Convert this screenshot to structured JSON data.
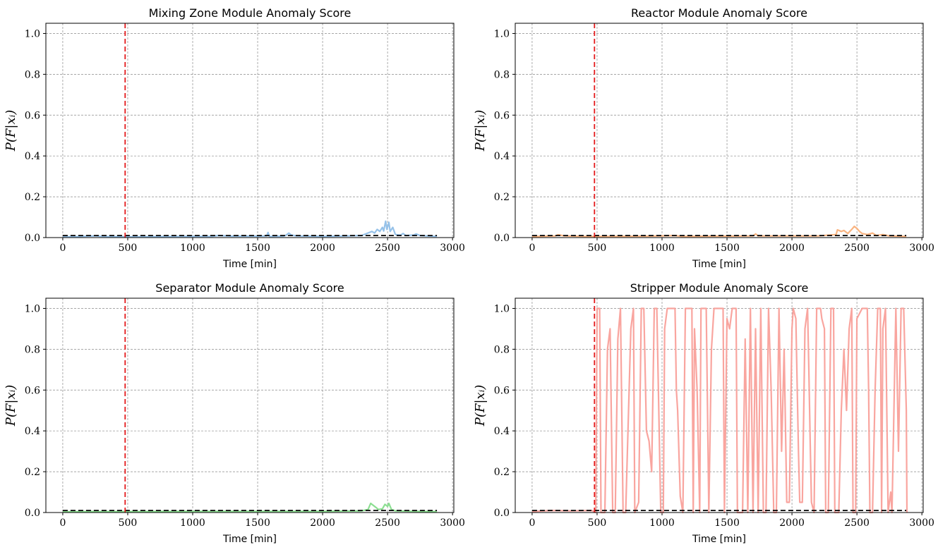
{
  "chart_data": [
    {
      "type": "line",
      "title": "Mixing Zone Module Anomaly Score",
      "xlabel": "Time [min]",
      "ylabel": "P(F|xᵢ)",
      "xlim": [
        -130,
        3010
      ],
      "ylim": [
        0,
        1.05
      ],
      "xticks": [
        "0",
        "500",
        "1000",
        "1500",
        "2000",
        "2500",
        "3000"
      ],
      "yticks": [
        "0.0",
        "0.2",
        "0.4",
        "0.6",
        "0.8",
        "1.0"
      ],
      "grid": true,
      "fault_time": 480,
      "threshold": 0.01,
      "series": [
        {
          "color": "#90bfe8",
          "points": [
            [
              0,
              0.004
            ],
            [
              100,
              0.005
            ],
            [
              250,
              0.008
            ],
            [
              300,
              0.006
            ],
            [
              500,
              0.004
            ],
            [
              700,
              0.005
            ],
            [
              900,
              0.006
            ],
            [
              1150,
              0.006
            ],
            [
              1200,
              0.01
            ],
            [
              1300,
              0.007
            ],
            [
              1500,
              0.007
            ],
            [
              1570,
              0.008
            ],
            [
              1580,
              0.025
            ],
            [
              1590,
              0.006
            ],
            [
              1700,
              0.007
            ],
            [
              1720,
              0.012
            ],
            [
              1740,
              0.022
            ],
            [
              1760,
              0.012
            ],
            [
              1800,
              0.008
            ],
            [
              2000,
              0.006
            ],
            [
              2200,
              0.008
            ],
            [
              2300,
              0.01
            ],
            [
              2340,
              0.02
            ],
            [
              2380,
              0.03
            ],
            [
              2400,
              0.022
            ],
            [
              2420,
              0.04
            ],
            [
              2440,
              0.03
            ],
            [
              2460,
              0.05
            ],
            [
              2470,
              0.032
            ],
            [
              2485,
              0.08
            ],
            [
              2495,
              0.04
            ],
            [
              2510,
              0.075
            ],
            [
              2520,
              0.03
            ],
            [
              2540,
              0.05
            ],
            [
              2560,
              0.015
            ],
            [
              2600,
              0.012
            ],
            [
              2620,
              0.02
            ],
            [
              2640,
              0.01
            ],
            [
              2700,
              0.012
            ],
            [
              2720,
              0.018
            ],
            [
              2750,
              0.01
            ],
            [
              2800,
              0.008
            ],
            [
              2880,
              0.006
            ]
          ]
        }
      ]
    },
    {
      "type": "line",
      "title": "Reactor Module Anomaly Score",
      "xlabel": "Time [min]",
      "ylabel": "P(F|xᵢ)",
      "xlim": [
        -130,
        3010
      ],
      "ylim": [
        0,
        1.05
      ],
      "xticks": [
        "0",
        "500",
        "1000",
        "1500",
        "2000",
        "2500",
        "3000"
      ],
      "yticks": [
        "0.0",
        "0.2",
        "0.4",
        "0.6",
        "0.8",
        "1.0"
      ],
      "grid": true,
      "fault_time": 480,
      "threshold": 0.01,
      "series": [
        {
          "color": "#f9b07a",
          "points": [
            [
              0,
              0.005
            ],
            [
              180,
              0.008
            ],
            [
              200,
              0.014
            ],
            [
              250,
              0.008
            ],
            [
              400,
              0.006
            ],
            [
              600,
              0.006
            ],
            [
              900,
              0.007
            ],
            [
              1100,
              0.01
            ],
            [
              1150,
              0.006
            ],
            [
              1400,
              0.007
            ],
            [
              1700,
              0.008
            ],
            [
              1720,
              0.018
            ],
            [
              1740,
              0.008
            ],
            [
              2000,
              0.008
            ],
            [
              2200,
              0.008
            ],
            [
              2340,
              0.015
            ],
            [
              2350,
              0.038
            ],
            [
              2380,
              0.03
            ],
            [
              2400,
              0.035
            ],
            [
              2430,
              0.02
            ],
            [
              2460,
              0.04
            ],
            [
              2480,
              0.055
            ],
            [
              2500,
              0.045
            ],
            [
              2520,
              0.03
            ],
            [
              2540,
              0.02
            ],
            [
              2580,
              0.015
            ],
            [
              2620,
              0.022
            ],
            [
              2650,
              0.01
            ],
            [
              2700,
              0.015
            ],
            [
              2750,
              0.008
            ],
            [
              2880,
              0.006
            ]
          ]
        }
      ]
    },
    {
      "type": "line",
      "title": "Separator Module Anomaly Score",
      "xlabel": "Time [min]",
      "ylabel": "P(F|xᵢ)",
      "xlim": [
        -130,
        3010
      ],
      "ylim": [
        0,
        1.05
      ],
      "xticks": [
        "0",
        "500",
        "1000",
        "1500",
        "2000",
        "2500",
        "3000"
      ],
      "yticks": [
        "0.0",
        "0.2",
        "0.4",
        "0.6",
        "0.8",
        "1.0"
      ],
      "grid": true,
      "fault_time": 480,
      "threshold": 0.01,
      "series": [
        {
          "color": "#86dd8c",
          "points": [
            [
              0,
              0.004
            ],
            [
              300,
              0.005
            ],
            [
              600,
              0.005
            ],
            [
              1000,
              0.006
            ],
            [
              1500,
              0.006
            ],
            [
              2000,
              0.006
            ],
            [
              2300,
              0.008
            ],
            [
              2350,
              0.015
            ],
            [
              2370,
              0.045
            ],
            [
              2390,
              0.035
            ],
            [
              2410,
              0.025
            ],
            [
              2430,
              0.015
            ],
            [
              2460,
              0.018
            ],
            [
              2480,
              0.04
            ],
            [
              2500,
              0.03
            ],
            [
              2510,
              0.045
            ],
            [
              2530,
              0.015
            ],
            [
              2560,
              0.008
            ],
            [
              2700,
              0.006
            ],
            [
              2880,
              0.005
            ]
          ]
        }
      ]
    },
    {
      "type": "line",
      "title": "Stripper Module Anomaly Score",
      "xlabel": "Time [min]",
      "ylabel": "P(F|xᵢ)",
      "xlim": [
        -130,
        3010
      ],
      "ylim": [
        0,
        1.05
      ],
      "xticks": [
        "0",
        "500",
        "1000",
        "1500",
        "2000",
        "2500",
        "3000"
      ],
      "yticks": [
        "0.0",
        "0.2",
        "0.4",
        "0.6",
        "0.8",
        "1.0"
      ],
      "grid": true,
      "fault_time": 480,
      "threshold": 0.01,
      "series": [
        {
          "color": "#f9a09a",
          "points": [
            [
              0,
              0.005
            ],
            [
              150,
              0.01
            ],
            [
              300,
              0.008
            ],
            [
              460,
              0.01
            ],
            [
              490,
              0.0
            ],
            [
              500,
              1.0
            ],
            [
              520,
              1.0
            ],
            [
              530,
              0.0
            ],
            [
              560,
              0.0
            ],
            [
              580,
              0.8
            ],
            [
              600,
              0.9
            ],
            [
              620,
              0.0
            ],
            [
              640,
              0.0
            ],
            [
              660,
              0.85
            ],
            [
              680,
              1.0
            ],
            [
              700,
              0.0
            ],
            [
              720,
              0.0
            ],
            [
              760,
              0.9
            ],
            [
              780,
              1.0
            ],
            [
              790,
              0.0
            ],
            [
              820,
              0.05
            ],
            [
              840,
              1.0
            ],
            [
              860,
              1.0
            ],
            [
              880,
              0.4
            ],
            [
              900,
              0.35
            ],
            [
              920,
              0.2
            ],
            [
              940,
              1.0
            ],
            [
              960,
              1.0
            ],
            [
              990,
              0.0
            ],
            [
              1010,
              0.0
            ],
            [
              1020,
              0.9
            ],
            [
              1040,
              1.0
            ],
            [
              1100,
              1.0
            ],
            [
              1110,
              0.6
            ],
            [
              1120,
              0.5
            ],
            [
              1140,
              0.08
            ],
            [
              1160,
              0.0
            ],
            [
              1180,
              1.0
            ],
            [
              1230,
              1.0
            ],
            [
              1240,
              0.0
            ],
            [
              1250,
              0.9
            ],
            [
              1270,
              0.6
            ],
            [
              1290,
              0.0
            ],
            [
              1300,
              1.0
            ],
            [
              1340,
              1.0
            ],
            [
              1360,
              0.0
            ],
            [
              1380,
              0.8
            ],
            [
              1400,
              1.0
            ],
            [
              1470,
              1.0
            ],
            [
              1480,
              0.0
            ],
            [
              1500,
              0.95
            ],
            [
              1520,
              0.9
            ],
            [
              1540,
              1.0
            ],
            [
              1570,
              1.0
            ],
            [
              1580,
              0.0
            ],
            [
              1620,
              0.0
            ],
            [
              1640,
              0.85
            ],
            [
              1660,
              0.0
            ],
            [
              1680,
              1.0
            ],
            [
              1700,
              0.0
            ],
            [
              1720,
              0.9
            ],
            [
              1740,
              0.0
            ],
            [
              1760,
              1.0
            ],
            [
              1780,
              0.0
            ],
            [
              1800,
              0.0
            ],
            [
              1820,
              1.0
            ],
            [
              1840,
              0.6
            ],
            [
              1860,
              0.0
            ],
            [
              1880,
              0.0
            ],
            [
              1900,
              1.0
            ],
            [
              1920,
              0.3
            ],
            [
              1940,
              0.8
            ],
            [
              1960,
              0.05
            ],
            [
              1980,
              0.05
            ],
            [
              2000,
              0.9
            ],
            [
              2010,
              1.0
            ],
            [
              2030,
              0.95
            ],
            [
              2050,
              0.3
            ],
            [
              2060,
              0.05
            ],
            [
              2080,
              0.05
            ],
            [
              2100,
              0.9
            ],
            [
              2120,
              1.0
            ],
            [
              2130,
              0.7
            ],
            [
              2140,
              0.35
            ],
            [
              2150,
              0.05
            ],
            [
              2170,
              0.0
            ],
            [
              2190,
              1.0
            ],
            [
              2220,
              1.0
            ],
            [
              2230,
              0.95
            ],
            [
              2250,
              0.9
            ],
            [
              2260,
              0.0
            ],
            [
              2280,
              0.0
            ],
            [
              2300,
              1.0
            ],
            [
              2320,
              1.0
            ],
            [
              2330,
              0.0
            ],
            [
              2360,
              0.0
            ],
            [
              2380,
              0.5
            ],
            [
              2400,
              0.8
            ],
            [
              2420,
              0.5
            ],
            [
              2440,
              0.9
            ],
            [
              2460,
              1.0
            ],
            [
              2470,
              0.0
            ],
            [
              2490,
              0.0
            ],
            [
              2500,
              0.95
            ],
            [
              2540,
              1.0
            ],
            [
              2580,
              1.0
            ],
            [
              2590,
              0.6
            ],
            [
              2600,
              0.0
            ],
            [
              2620,
              0.0
            ],
            [
              2640,
              0.6
            ],
            [
              2660,
              1.0
            ],
            [
              2680,
              1.0
            ],
            [
              2690,
              0.0
            ],
            [
              2700,
              0.9
            ],
            [
              2720,
              1.0
            ],
            [
              2740,
              0.0
            ],
            [
              2760,
              0.1
            ],
            [
              2770,
              0.0
            ],
            [
              2800,
              1.0
            ],
            [
              2820,
              0.3
            ],
            [
              2840,
              1.0
            ],
            [
              2860,
              1.0
            ],
            [
              2880,
              0.5
            ],
            [
              2885,
              0.0
            ]
          ]
        }
      ]
    }
  ]
}
